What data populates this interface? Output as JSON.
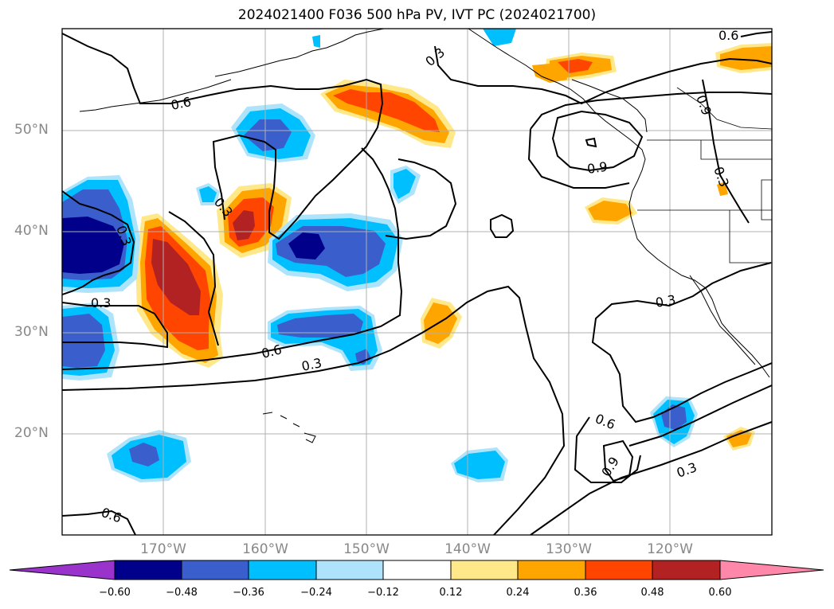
{
  "title": "2024021400 F036 500 hPa PV, IVT PC (2024021700)",
  "lat_labels": [
    "50°N",
    "40°N",
    "30°N",
    "20°N"
  ],
  "lon_labels": [
    "170°W",
    "160°W",
    "150°W",
    "140°W",
    "130°W",
    "120°W"
  ],
  "contour_labels": [
    "0.6",
    "0.3",
    "0.3",
    "0.3",
    "0.6",
    "0.3",
    "0.6",
    "0.9",
    "0.9",
    "0.3",
    "0.3",
    "0.6",
    "0.9",
    "0.3",
    "0.3",
    "0.6"
  ],
  "colorbar": {
    "ticks": [
      "−0.60",
      "−0.48",
      "−0.36",
      "−0.24",
      "−0.12",
      "0.12",
      "0.24",
      "0.36",
      "0.48",
      "0.60"
    ],
    "colors": {
      "below": "#9933cc",
      "neg_060": "#00008b",
      "neg_048": "#3a5fcd",
      "neg_036": "#00bfff",
      "neg_024": "#aee4fb",
      "zero": "#ffffff",
      "pos_012": "#ffe88a",
      "pos_024": "#ffa500",
      "pos_036": "#ff4500",
      "pos_048": "#b22222",
      "above": "#ff88aa"
    }
  },
  "map": {
    "region": "North Pacific and western North America",
    "lat_range": [
      10,
      60
    ],
    "lon_range": [
      -180,
      -110
    ],
    "gridlines": true
  }
}
